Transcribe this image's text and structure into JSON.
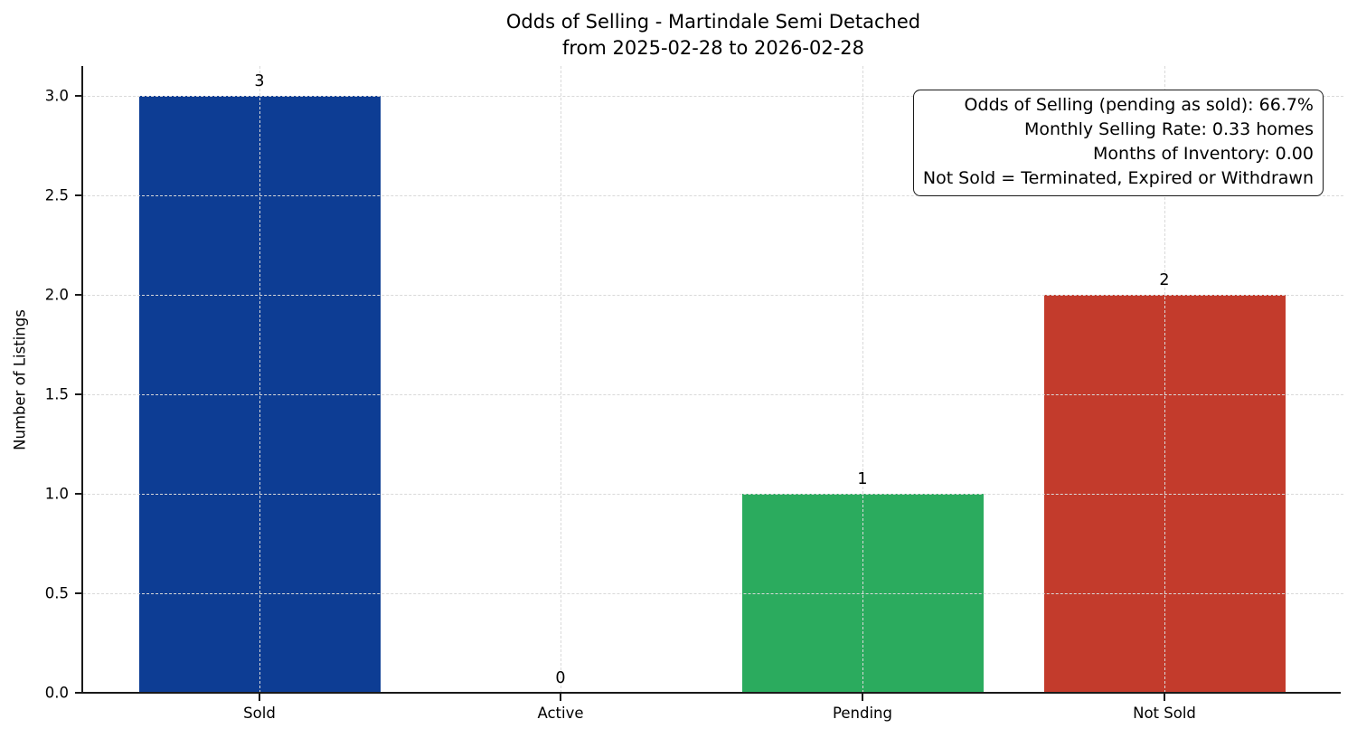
{
  "title": {
    "line1": "Odds of Selling - Martindale Semi Detached",
    "line2": "from 2025-02-28 to 2026-02-28"
  },
  "chart_data": {
    "type": "bar",
    "title": "Odds of Selling - Martindale Semi Detached\nfrom 2025-02-28 to 2026-02-28",
    "categories": [
      "Sold",
      "Active",
      "Pending",
      "Not Sold"
    ],
    "values": [
      3,
      0,
      1,
      2
    ],
    "value_labels": [
      "3",
      "0",
      "1",
      "2"
    ],
    "bar_colors": [
      "#0d3d94",
      null,
      "#2bab5e",
      "#c33b2c"
    ],
    "xlabel": "",
    "ylabel": "Number of Listings",
    "ylim": [
      0,
      3.15
    ],
    "yticks": [
      0,
      0.5,
      1,
      1.5,
      2,
      2.5,
      3
    ],
    "ytick_labels": [
      "0.0",
      "0.5",
      "1.0",
      "1.5",
      "2.0",
      "2.5",
      "3.0"
    ],
    "grid": {
      "visible": true,
      "axis": "both",
      "style": "dashed",
      "color": "#d9d9d9"
    },
    "legend": null,
    "annotation": {
      "position": "top-right",
      "text_align": "right",
      "lines": [
        "Odds of Selling (pending as sold): 66.7%",
        "Monthly Selling Rate: 0.33 homes",
        "Months of Inventory: 0.00",
        "Not Sold = Terminated, Expired or Withdrawn"
      ]
    }
  },
  "colors": {
    "background": "#ffffff",
    "axis": "#1a1a1a",
    "grid": "#d9d9d9",
    "text": "#000000"
  }
}
